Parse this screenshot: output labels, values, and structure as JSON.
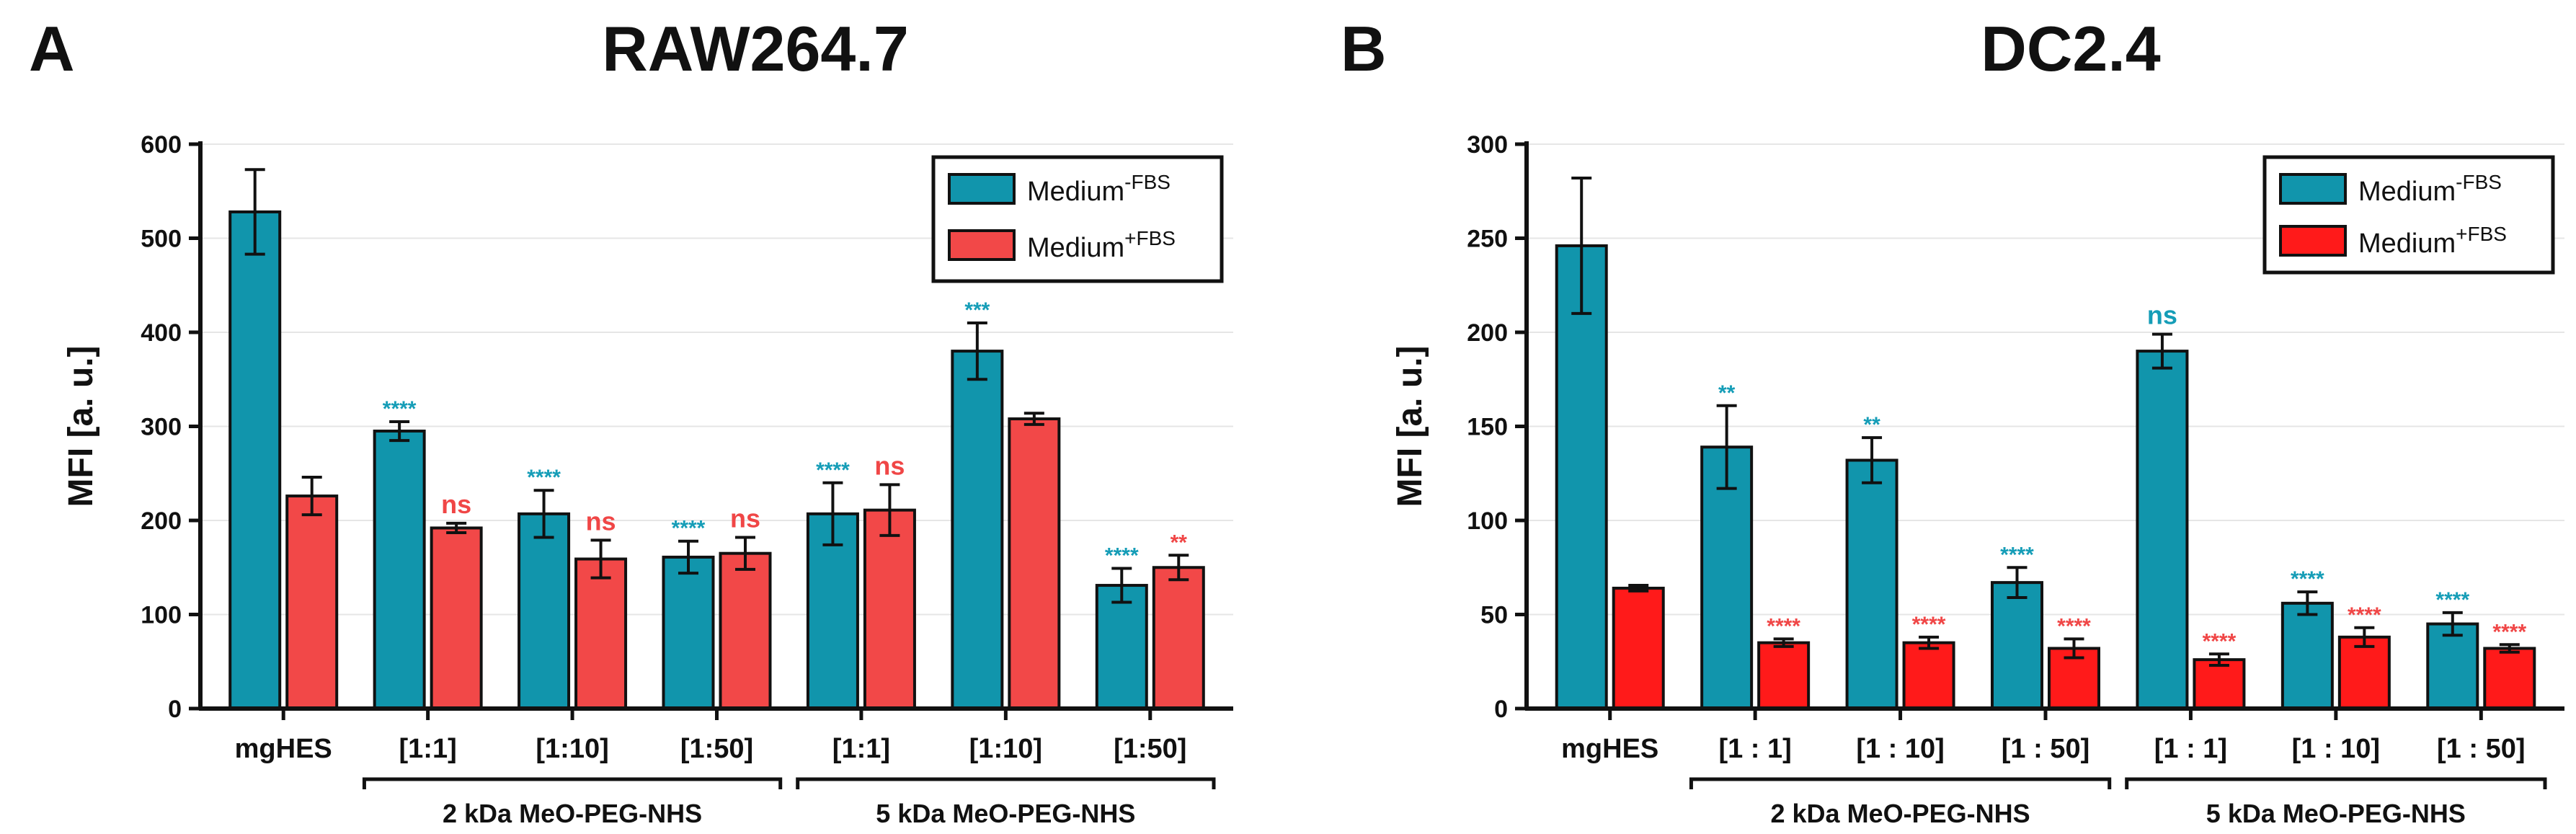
{
  "colors": {
    "series1": "#1195AC",
    "series2_A": "#F24848",
    "series2_B": "#FF1A1A",
    "sig1": "#159DB7",
    "sig2": "#F04646"
  },
  "chart_data": [
    {
      "type": "bar",
      "panel_label": "A",
      "title": "RAW264.7",
      "ylabel": "MFI [a. u.]",
      "xlabel": "",
      "ylim": [
        0,
        600
      ],
      "yticks": [
        "0",
        "100",
        "200",
        "300",
        "400",
        "500",
        "600"
      ],
      "grid": true,
      "legend_position": "top-right",
      "legend": [
        {
          "base": "Medium",
          "sup": "-FBS"
        },
        {
          "base": "Medium",
          "sup": "+FBS"
        }
      ],
      "categories": [
        "mgHES",
        "[1:1]",
        "[1:10]",
        "[1:50]",
        "[1:1]",
        "[1:10]",
        "[1:50]"
      ],
      "groups": [
        {
          "label": "2 kDa MeO-PEG-NHS",
          "from": 1,
          "to": 3
        },
        {
          "label": "5 kDa MeO-PEG-NHS",
          "from": 4,
          "to": 6
        }
      ],
      "series": [
        {
          "name": "Medium-FBS",
          "values": [
            528,
            295,
            207,
            161,
            207,
            380,
            131
          ],
          "errors": [
            45,
            10,
            25,
            17,
            33,
            30,
            18
          ],
          "significance": [
            "",
            "****",
            "****",
            "****",
            "****",
            "***",
            "****"
          ]
        },
        {
          "name": "Medium+FBS",
          "values": [
            226,
            192,
            159,
            165,
            211,
            308,
            150
          ],
          "errors": [
            20,
            5,
            20,
            17,
            27,
            6,
            13
          ],
          "significance": [
            "",
            "ns",
            "ns",
            "ns",
            "ns",
            "",
            "**"
          ]
        }
      ]
    },
    {
      "type": "bar",
      "panel_label": "B",
      "title": "DC2.4",
      "ylabel": "MFI [a. u.]",
      "xlabel": "",
      "ylim": [
        0,
        300
      ],
      "yticks": [
        "0",
        "50",
        "100",
        "150",
        "200",
        "250",
        "300"
      ],
      "grid": true,
      "legend_position": "top-right",
      "legend": [
        {
          "base": "Medium",
          "sup": "-FBS"
        },
        {
          "base": "Medium",
          "sup": "+FBS"
        }
      ],
      "categories": [
        "mgHES",
        "[1 : 1]",
        "[1 : 10]",
        "[1 : 50]",
        "[1 : 1]",
        "[1 : 10]",
        "[1 : 50]"
      ],
      "groups": [
        {
          "label": "2 kDa MeO-PEG-NHS",
          "from": 1,
          "to": 3
        },
        {
          "label": "5 kDa MeO-PEG-NHS",
          "from": 4,
          "to": 6
        }
      ],
      "series": [
        {
          "name": "Medium-FBS",
          "values": [
            246,
            139,
            132,
            67,
            190,
            56,
            45
          ],
          "errors": [
            36,
            22,
            12,
            8,
            9,
            6,
            6
          ],
          "significance": [
            "",
            "**",
            "**",
            "****",
            "ns",
            "****",
            "****"
          ]
        },
        {
          "name": "Medium+FBS",
          "values": [
            64,
            35,
            35,
            32,
            26,
            38,
            32
          ],
          "errors": [
            1.5,
            2,
            3,
            5,
            3,
            5,
            2
          ],
          "significance": [
            "",
            "****",
            "****",
            "****",
            "****",
            "****",
            "****"
          ]
        }
      ]
    }
  ]
}
